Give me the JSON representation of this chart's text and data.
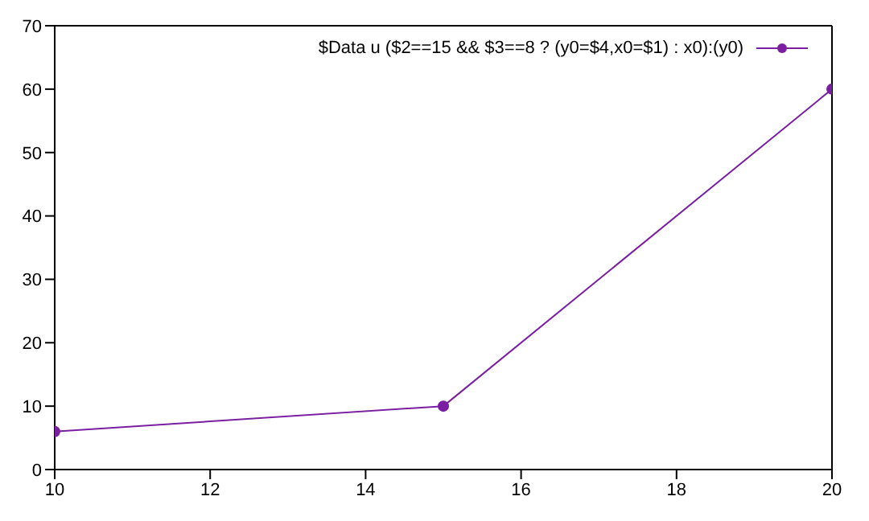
{
  "chart_data": {
    "type": "line",
    "x": [
      10,
      15,
      20
    ],
    "series": [
      {
        "name": "$Data u ($2==15 && $3==8 ? (y0=$4,x0=$1) : x0):(y0)",
        "color": "#7b1fa2",
        "values": [
          6,
          10,
          60
        ]
      }
    ],
    "xlim": [
      10,
      20
    ],
    "xticks": [
      10,
      12,
      14,
      16,
      18,
      20
    ],
    "ylim": [
      0,
      70
    ],
    "yticks": [
      0,
      10,
      20,
      30,
      40,
      50,
      60,
      70
    ],
    "legend": "top right",
    "marker": "circle",
    "line_style": "solid"
  }
}
